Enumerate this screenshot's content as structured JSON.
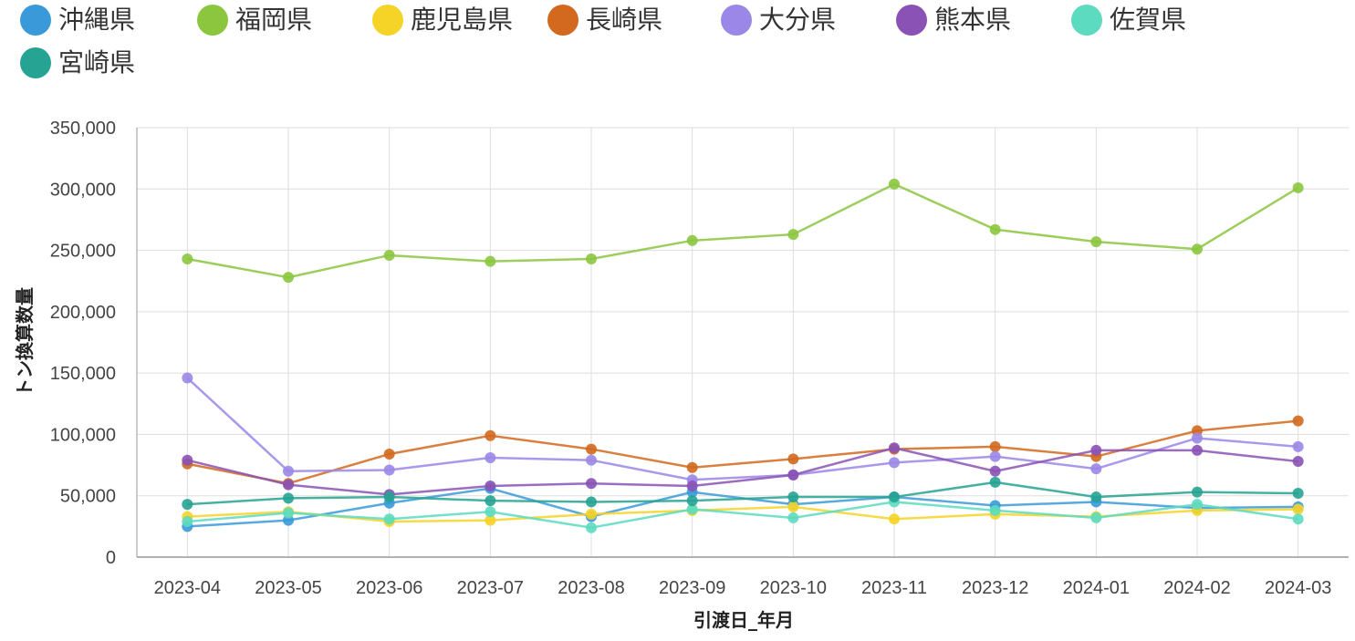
{
  "chart_data": {
    "type": "line",
    "xlabel": "引渡日_年月",
    "ylabel": "トン換算数量",
    "ylim": [
      0,
      350000
    ],
    "yticks": [
      0,
      50000,
      100000,
      150000,
      200000,
      250000,
      300000,
      350000
    ],
    "ytick_labels": [
      "0",
      "50,000",
      "100,000",
      "150,000",
      "200,000",
      "250,000",
      "300,000",
      "350,000"
    ],
    "categories": [
      "2023-04",
      "2023-05",
      "2023-06",
      "2023-07",
      "2023-08",
      "2023-09",
      "2023-10",
      "2023-11",
      "2023-12",
      "2024-01",
      "2024-02",
      "2024-03"
    ],
    "grid": true,
    "legend_position": "top-left",
    "series": [
      {
        "name": "沖縄県",
        "color": "#3a9ad9",
        "values": [
          25000,
          30000,
          44000,
          56000,
          33000,
          53000,
          43000,
          49000,
          42000,
          45000,
          40000,
          41000
        ]
      },
      {
        "name": "福岡県",
        "color": "#8cc63f",
        "values": [
          243000,
          228000,
          246000,
          241000,
          243000,
          258000,
          263000,
          304000,
          267000,
          257000,
          251000,
          301000
        ]
      },
      {
        "name": "鹿児島県",
        "color": "#f5d327",
        "values": [
          33000,
          37000,
          29000,
          30000,
          35000,
          38000,
          41000,
          31000,
          35000,
          33000,
          38000,
          39000
        ]
      },
      {
        "name": "長崎県",
        "color": "#d2691e",
        "values": [
          76000,
          60000,
          84000,
          99000,
          88000,
          73000,
          80000,
          88000,
          90000,
          82000,
          103000,
          111000
        ]
      },
      {
        "name": "大分県",
        "color": "#9b87e8",
        "values": [
          146000,
          70000,
          71000,
          81000,
          79000,
          63000,
          67000,
          77000,
          82000,
          72000,
          97000,
          90000
        ]
      },
      {
        "name": "熊本県",
        "color": "#8a52b5",
        "values": [
          79000,
          59000,
          51000,
          58000,
          60000,
          58000,
          67000,
          89000,
          70000,
          87000,
          87000,
          78000
        ]
      },
      {
        "name": "佐賀県",
        "color": "#5cdbc0",
        "values": [
          29000,
          36000,
          31000,
          37000,
          24000,
          39000,
          32000,
          45000,
          38000,
          32000,
          43000,
          31000
        ]
      },
      {
        "name": "宮崎県",
        "color": "#26a392",
        "values": [
          43000,
          48000,
          49000,
          46000,
          45000,
          46000,
          49000,
          49000,
          61000,
          49000,
          53000,
          52000
        ]
      }
    ]
  }
}
